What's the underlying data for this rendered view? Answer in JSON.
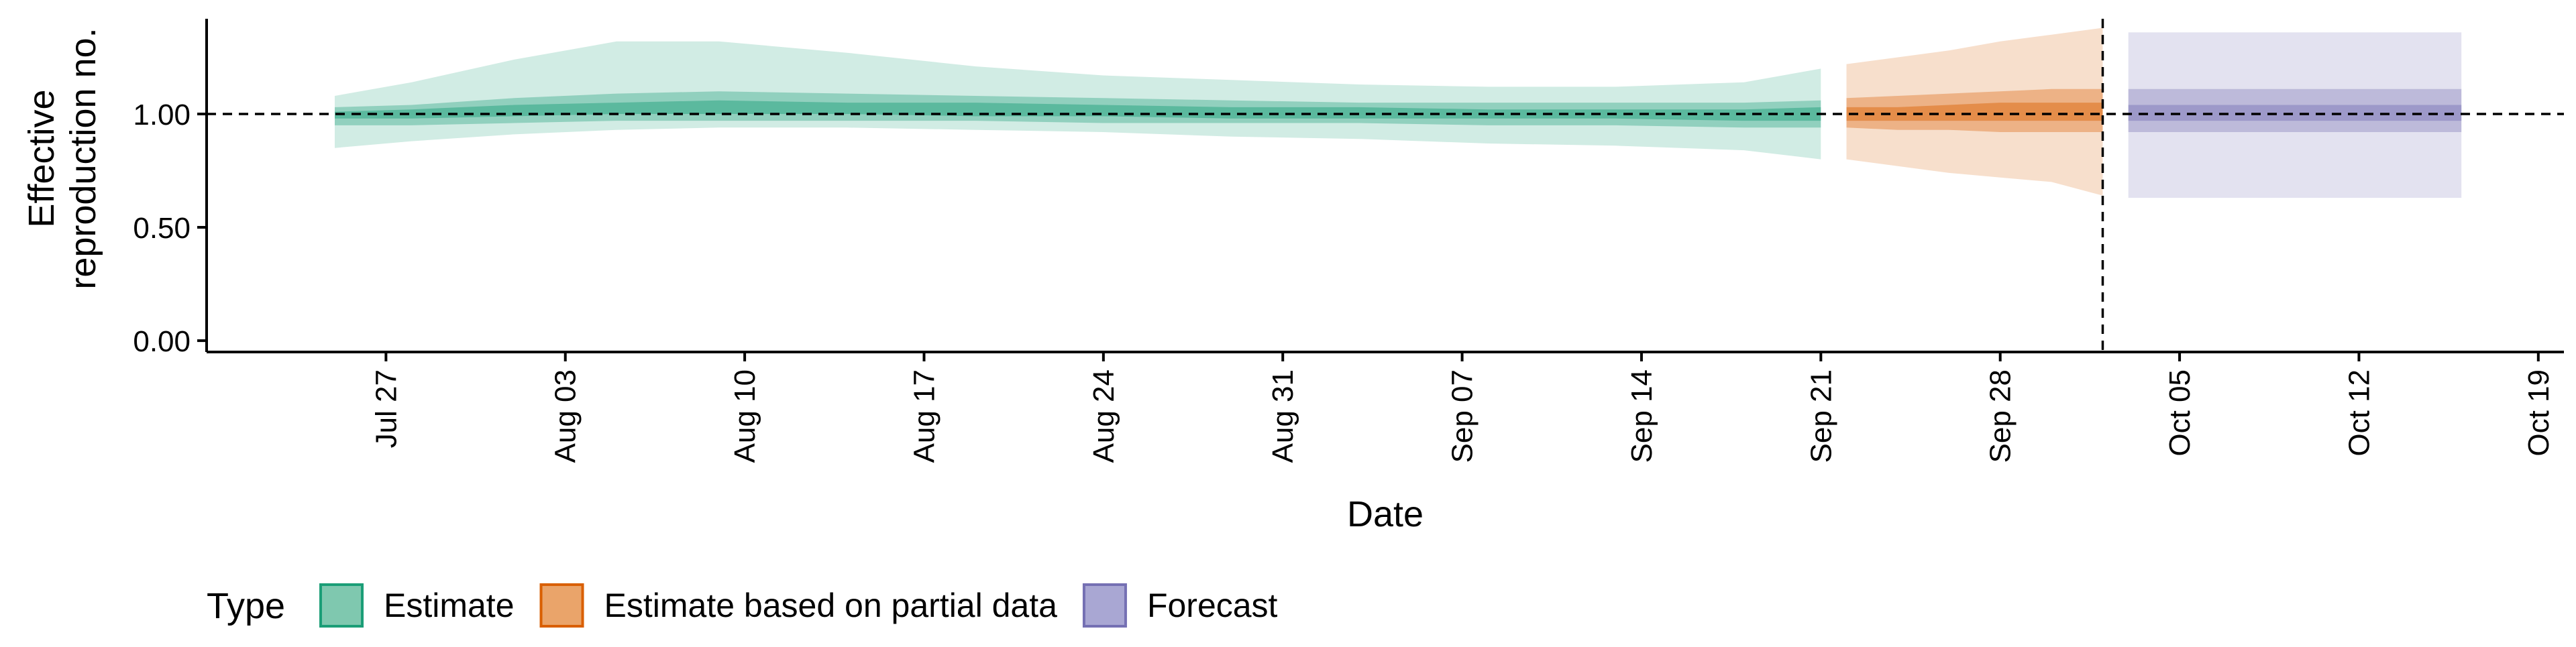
{
  "chart_data": {
    "type": "area",
    "xlabel": "Date",
    "ylabel_lines": [
      "Effective",
      "reproduction no."
    ],
    "y_ticks": [
      "0.00",
      "0.50",
      "1.00"
    ],
    "y_tick_values": [
      0,
      0.5,
      1.0
    ],
    "ylim": [
      -0.05,
      1.42
    ],
    "x_ticks": [
      "Jul 27",
      "Aug 03",
      "Aug 10",
      "Aug 17",
      "Aug 24",
      "Aug 31",
      "Sep 07",
      "Sep 14",
      "Sep 21",
      "Sep 28",
      "Oct 05",
      "Oct 12",
      "Oct 19"
    ],
    "x_tick_dates": [
      "2020-07-27",
      "2020-08-03",
      "2020-08-10",
      "2020-08-17",
      "2020-08-24",
      "2020-08-31",
      "2020-09-07",
      "2020-09-14",
      "2020-09-21",
      "2020-09-28",
      "2020-10-05",
      "2020-10-12",
      "2020-10-19"
    ],
    "xlim": [
      "2020-07-20",
      "2020-10-20"
    ],
    "reference_line_y": 1.0,
    "vertical_line_date": "2020-10-02",
    "grid": false,
    "legend": {
      "title": "Type",
      "position": "bottom",
      "items": [
        {
          "label": "Estimate",
          "fill": "#7FC8AF",
          "stroke": "#1B9E77"
        },
        {
          "label": "Estimate based on partial data",
          "fill": "#EAA46A",
          "stroke": "#D95F02"
        },
        {
          "label": "Forecast",
          "fill": "#A9A7D3",
          "stroke": "#7570B3"
        }
      ]
    },
    "series": [
      {
        "name": "Estimate",
        "color": "#1B9E77",
        "dates": [
          "2020-07-25",
          "2020-07-28",
          "2020-08-01",
          "2020-08-05",
          "2020-08-09",
          "2020-08-14",
          "2020-08-19",
          "2020-08-24",
          "2020-08-29",
          "2020-09-03",
          "2020-09-08",
          "2020-09-13",
          "2020-09-18",
          "2020-09-21"
        ],
        "median": [
          1.0,
          1.0,
          1.01,
          1.02,
          1.03,
          1.03,
          1.02,
          1.02,
          1.01,
          1.01,
          1.0,
          1.0,
          1.0,
          1.0
        ],
        "lower_90": [
          0.85,
          0.88,
          0.91,
          0.93,
          0.94,
          0.94,
          0.93,
          0.92,
          0.9,
          0.89,
          0.87,
          0.86,
          0.84,
          0.8
        ],
        "upper_90": [
          1.08,
          1.14,
          1.24,
          1.32,
          1.32,
          1.27,
          1.21,
          1.17,
          1.15,
          1.13,
          1.12,
          1.12,
          1.14,
          1.2
        ],
        "lower_50": [
          0.95,
          0.95,
          0.96,
          0.97,
          0.97,
          0.97,
          0.97,
          0.96,
          0.96,
          0.96,
          0.95,
          0.95,
          0.94,
          0.94
        ],
        "upper_50": [
          1.03,
          1.04,
          1.07,
          1.09,
          1.1,
          1.09,
          1.08,
          1.07,
          1.06,
          1.05,
          1.05,
          1.05,
          1.05,
          1.06
        ],
        "lower_20": [
          0.98,
          0.98,
          0.99,
          1.0,
          1.0,
          1.0,
          0.99,
          0.99,
          0.98,
          0.98,
          0.98,
          0.98,
          0.97,
          0.97
        ],
        "upper_20": [
          1.01,
          1.02,
          1.04,
          1.05,
          1.06,
          1.05,
          1.05,
          1.04,
          1.03,
          1.03,
          1.02,
          1.02,
          1.02,
          1.03
        ]
      },
      {
        "name": "Estimate based on partial data",
        "color": "#D95F02",
        "dates": [
          "2020-09-22",
          "2020-09-24",
          "2020-09-26",
          "2020-09-28",
          "2020-09-30",
          "2020-10-02"
        ],
        "median": [
          1.0,
          1.0,
          1.01,
          1.01,
          1.01,
          1.0
        ],
        "lower_90": [
          0.8,
          0.77,
          0.74,
          0.72,
          0.7,
          0.64
        ],
        "upper_90": [
          1.22,
          1.25,
          1.28,
          1.32,
          1.35,
          1.38
        ],
        "lower_50": [
          0.94,
          0.93,
          0.93,
          0.92,
          0.92,
          0.92
        ],
        "upper_50": [
          1.07,
          1.08,
          1.09,
          1.1,
          1.11,
          1.11
        ],
        "lower_20": [
          0.97,
          0.97,
          0.97,
          0.97,
          0.97,
          0.97
        ],
        "upper_20": [
          1.03,
          1.03,
          1.04,
          1.05,
          1.05,
          1.05
        ]
      },
      {
        "name": "Forecast",
        "color": "#7570B3",
        "dates": [
          "2020-10-03",
          "2020-10-16"
        ],
        "median": [
          1.0,
          1.0
        ],
        "lower_90": [
          0.63,
          0.63
        ],
        "upper_90": [
          1.36,
          1.36
        ],
        "lower_50": [
          0.92,
          0.92
        ],
        "upper_50": [
          1.11,
          1.11
        ],
        "lower_20": [
          0.97,
          0.97
        ],
        "upper_20": [
          1.04,
          1.04
        ]
      }
    ]
  }
}
